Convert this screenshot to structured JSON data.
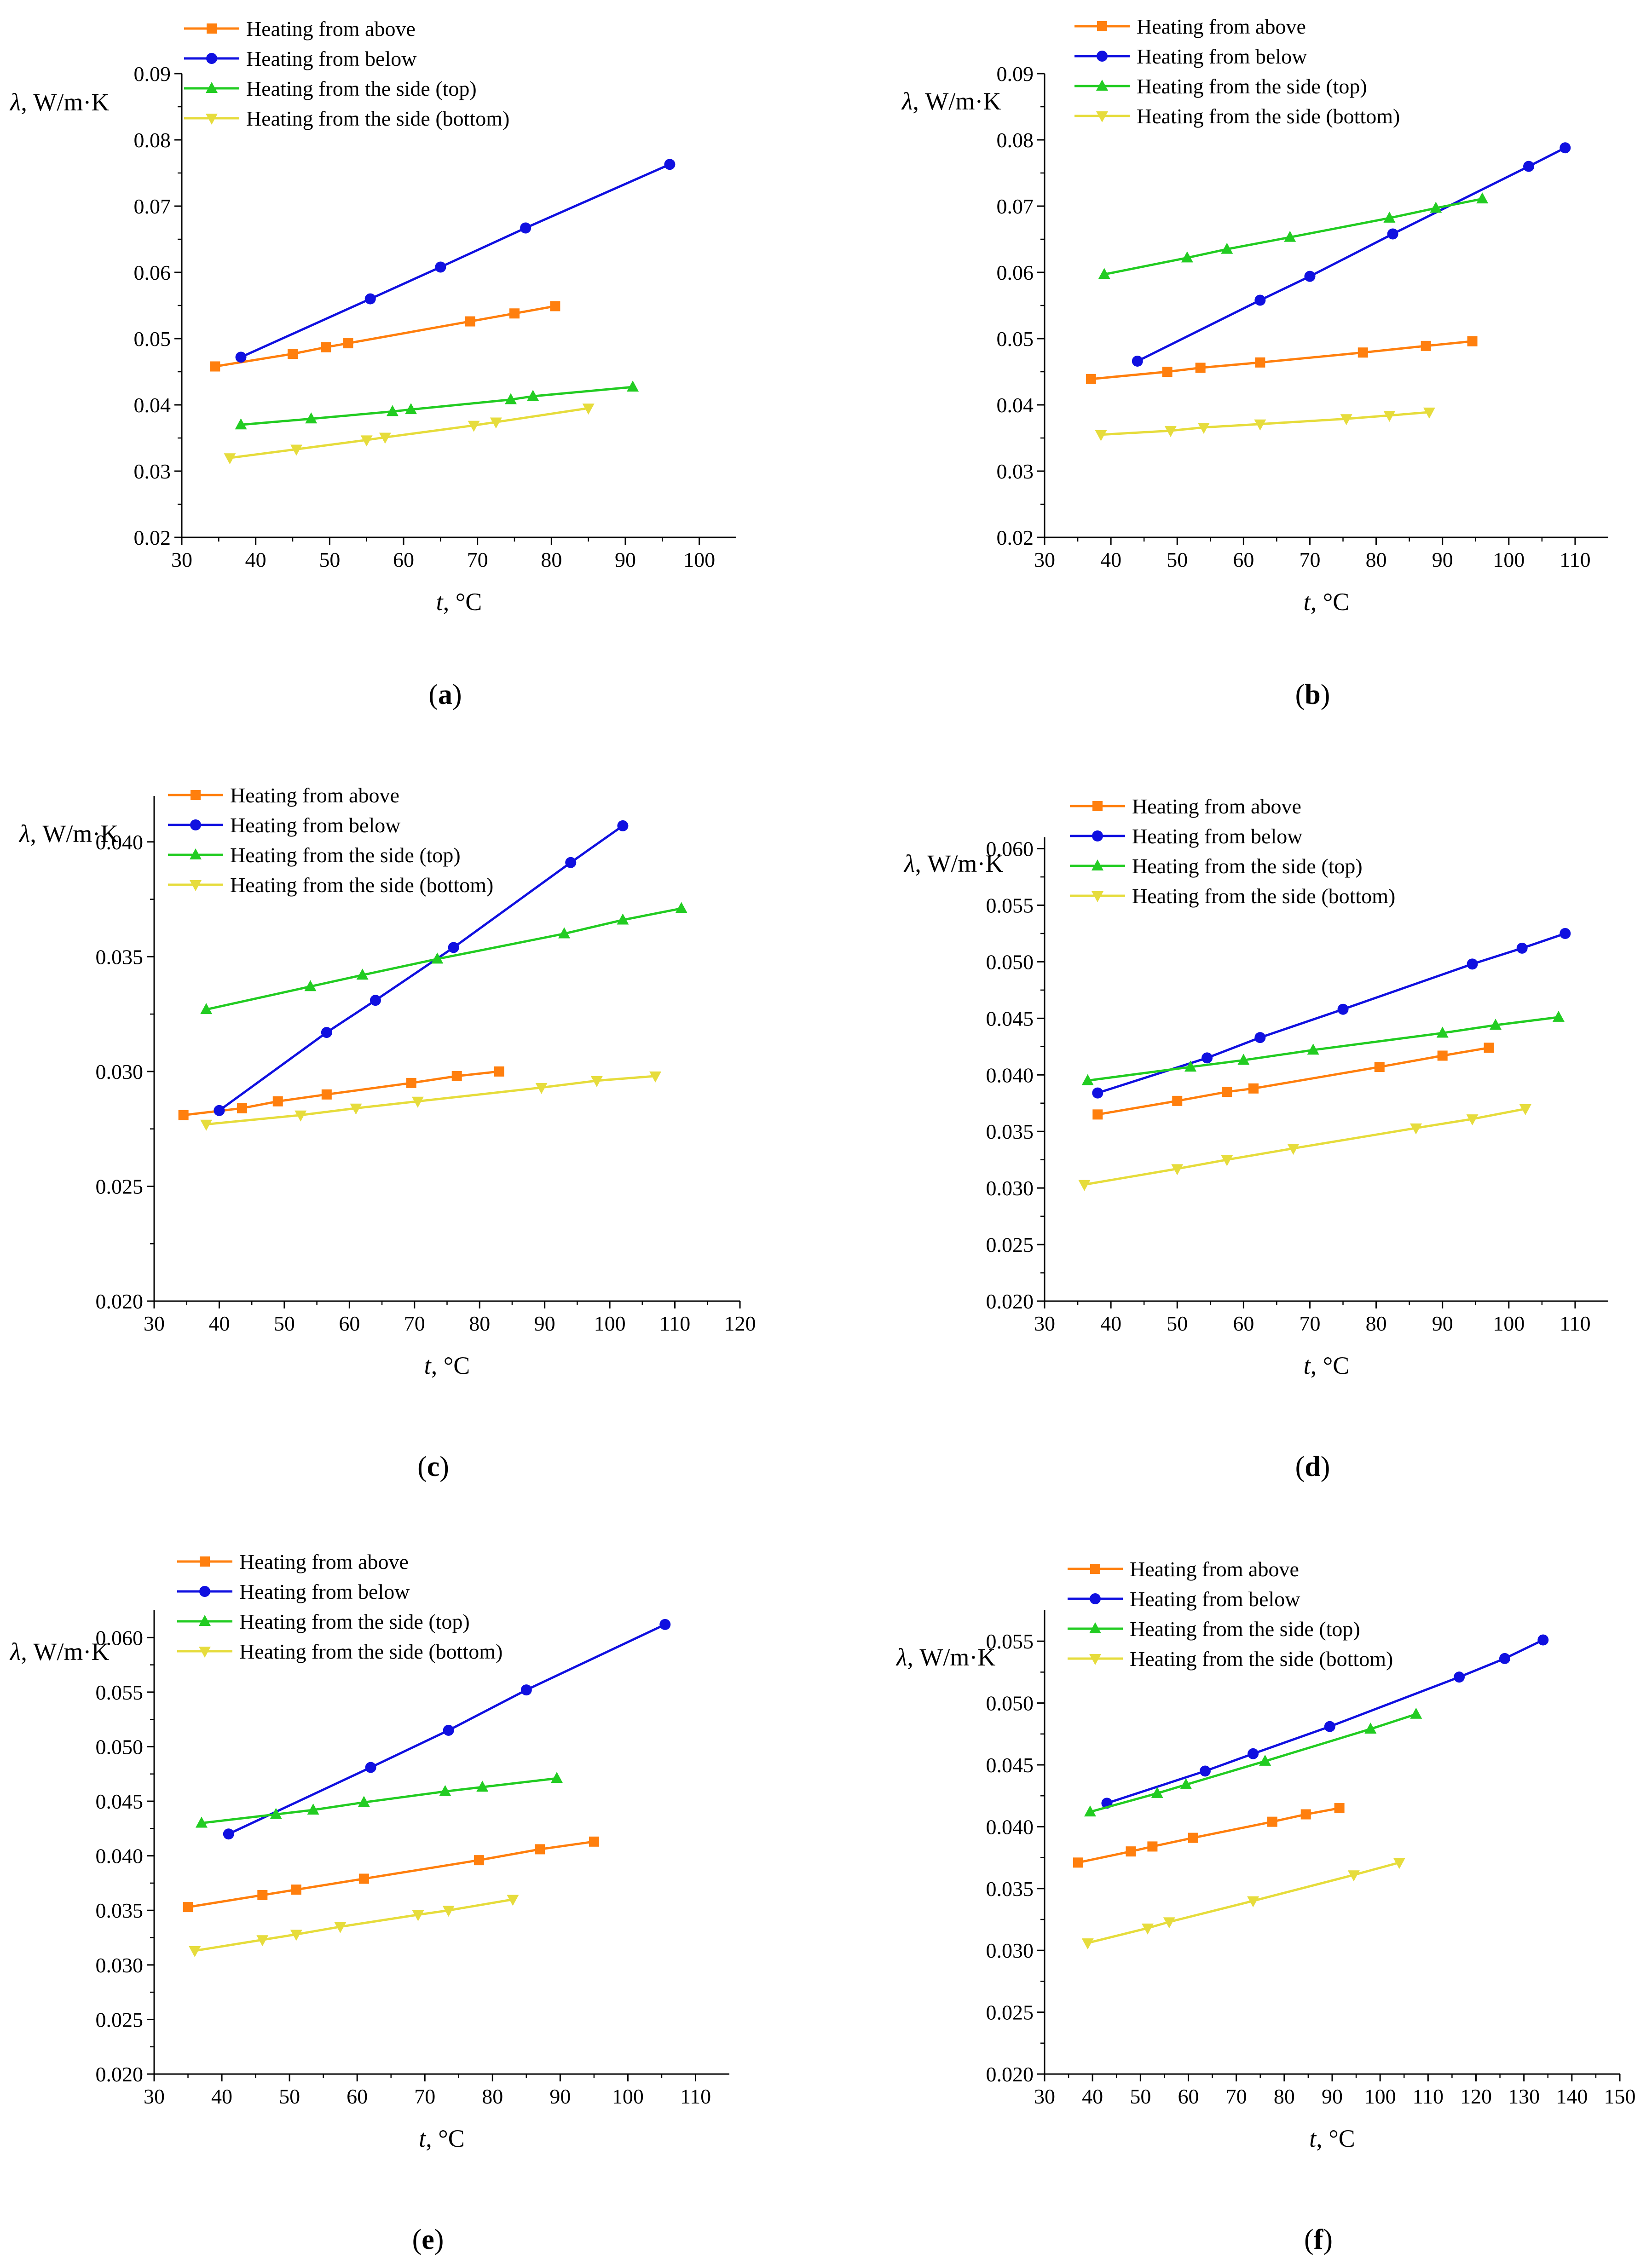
{
  "figure": {
    "series_colors": {
      "above": "#ff7f0e",
      "below": "#1010e0",
      "side_top": "#22cc22",
      "side_bottom": "#e6dc3c"
    },
    "marker_shapes": {
      "above": "square",
      "below": "circle",
      "side_top": "triangle-up",
      "side_bottom": "triangle-down"
    }
  },
  "chart_data": [
    {
      "id": "a",
      "type": "line",
      "caption_letter": "a",
      "xlabel_italic": "t",
      "xlabel_unit": ", °C",
      "ylabel_symbol": "λ",
      "ylabel_unit": ", W/m·K",
      "xlim": [
        30,
        105
      ],
      "ylim": [
        0.02,
        0.09
      ],
      "xticks": [
        "30",
        "40",
        "50",
        "60",
        "70",
        "80",
        "90",
        "100"
      ],
      "yticks": [
        "0.02",
        "0.03",
        "0.04",
        "0.05",
        "0.06",
        "0.07",
        "0.08",
        "0.09"
      ],
      "legend_position": "top-left",
      "series": [
        {
          "key": "above",
          "name": "Heating from above",
          "x": [
            34.5,
            45,
            49.5,
            52.5,
            69,
            75,
            80.5
          ],
          "y": [
            0.0458,
            0.0477,
            0.0487,
            0.0493,
            0.0526,
            0.0538,
            0.0549
          ]
        },
        {
          "key": "below",
          "name": "Heating from below",
          "x": [
            38,
            55.5,
            65,
            76.5,
            96
          ],
          "y": [
            0.0472,
            0.056,
            0.0608,
            0.0667,
            0.0763
          ]
        },
        {
          "key": "side_top",
          "name": "Heating from the side (top)",
          "x": [
            38,
            47.5,
            58.5,
            61,
            74.5,
            77.5,
            91
          ],
          "y": [
            0.037,
            0.0379,
            0.039,
            0.0393,
            0.0408,
            0.0413,
            0.0427
          ]
        },
        {
          "key": "side_bottom",
          "name": "Heating from the side (bottom)",
          "x": [
            36.5,
            45.5,
            55,
            57.5,
            69.5,
            72.5,
            85
          ],
          "y": [
            0.032,
            0.0333,
            0.0347,
            0.0351,
            0.0369,
            0.0374,
            0.0395
          ]
        }
      ]
    },
    {
      "id": "b",
      "type": "line",
      "caption_letter": "b",
      "xlabel_italic": "t",
      "xlabel_unit": ", °C",
      "ylabel_symbol": "λ",
      "ylabel_unit": ", W/m·K",
      "xlim": [
        30,
        115
      ],
      "ylim": [
        0.02,
        0.09
      ],
      "xticks": [
        "30",
        "40",
        "50",
        "60",
        "70",
        "80",
        "90",
        "100",
        "110"
      ],
      "yticks": [
        "0.02",
        "0.03",
        "0.04",
        "0.05",
        "0.06",
        "0.07",
        "0.08",
        "0.09"
      ],
      "legend_position": "top-left",
      "series": [
        {
          "key": "above",
          "name": "Heating from above",
          "x": [
            37,
            48.5,
            53.5,
            62.5,
            78,
            87.5,
            94.5
          ],
          "y": [
            0.0439,
            0.045,
            0.0456,
            0.0464,
            0.0479,
            0.0489,
            0.0496
          ]
        },
        {
          "key": "below",
          "name": "Heating from below",
          "x": [
            44,
            62.5,
            70,
            82.5,
            103,
            108.5
          ],
          "y": [
            0.0466,
            0.0558,
            0.0594,
            0.0658,
            0.076,
            0.0788
          ]
        },
        {
          "key": "side_top",
          "name": "Heating from the side (top)",
          "x": [
            39,
            51.5,
            57.5,
            67,
            82,
            89,
            96
          ],
          "y": [
            0.0597,
            0.0622,
            0.0635,
            0.0653,
            0.0682,
            0.0697,
            0.0711
          ]
        },
        {
          "key": "side_bottom",
          "name": "Heating from the side (bottom)",
          "x": [
            38.5,
            49,
            54,
            62.5,
            75.5,
            82,
            88
          ],
          "y": [
            0.0355,
            0.0361,
            0.0366,
            0.0371,
            0.0379,
            0.0384,
            0.0389
          ]
        }
      ]
    },
    {
      "id": "c",
      "type": "line",
      "caption_letter": "c",
      "xlabel_italic": "t",
      "xlabel_unit": ", °C",
      "ylabel_symbol": "λ",
      "ylabel_unit": ", W/m·K",
      "xlim": [
        30,
        120
      ],
      "ylim": [
        0.02,
        0.042
      ],
      "xticks": [
        "30",
        "40",
        "50",
        "60",
        "70",
        "80",
        "90",
        "100",
        "110",
        "120"
      ],
      "yticks": [
        "0.020",
        "0.025",
        "0.030",
        "0.035",
        "0.040"
      ],
      "legend_position": "top-left",
      "series": [
        {
          "key": "above",
          "name": "Heating from above",
          "x": [
            34.5,
            43.5,
            49,
            56.5,
            69.5,
            76.5,
            83
          ],
          "y": [
            0.0281,
            0.0284,
            0.0287,
            0.029,
            0.0295,
            0.0298,
            0.03
          ]
        },
        {
          "key": "below",
          "name": "Heating from below",
          "x": [
            40,
            56.5,
            64,
            76,
            94,
            102
          ],
          "y": [
            0.0283,
            0.0317,
            0.0331,
            0.0354,
            0.0391,
            0.0407
          ]
        },
        {
          "key": "side_top",
          "name": "Heating from the side (top)",
          "x": [
            38,
            54,
            62,
            73.5,
            93,
            102,
            111
          ],
          "y": [
            0.0327,
            0.0337,
            0.0342,
            0.0349,
            0.036,
            0.0366,
            0.0371
          ]
        },
        {
          "key": "side_bottom",
          "name": "Heating from the side (bottom)",
          "x": [
            38,
            52.5,
            61,
            70.5,
            89.5,
            98,
            107
          ],
          "y": [
            0.0277,
            0.0281,
            0.0284,
            0.0287,
            0.0293,
            0.0296,
            0.0298
          ]
        }
      ]
    },
    {
      "id": "d",
      "type": "line",
      "caption_letter": "d",
      "xlabel_italic": "t",
      "xlabel_unit": ", °C",
      "ylabel_symbol": "λ",
      "ylabel_unit": ", W/m·K",
      "xlim": [
        30,
        115
      ],
      "ylim": [
        0.02,
        0.061
      ],
      "xticks": [
        "30",
        "40",
        "50",
        "60",
        "70",
        "80",
        "90",
        "100",
        "110"
      ],
      "yticks": [
        "0.020",
        "0.025",
        "0.030",
        "0.035",
        "0.040",
        "0.045",
        "0.050",
        "0.055",
        "0.060"
      ],
      "legend_position": "top-left",
      "series": [
        {
          "key": "above",
          "name": "Heating from above",
          "x": [
            38,
            50,
            57.5,
            61.5,
            80.5,
            90,
            97
          ],
          "y": [
            0.0365,
            0.0377,
            0.0385,
            0.0388,
            0.0407,
            0.0417,
            0.0424
          ]
        },
        {
          "key": "below",
          "name": "Heating from below",
          "x": [
            38,
            54.5,
            62.5,
            75,
            94.5,
            102,
            108.5
          ],
          "y": [
            0.0384,
            0.0415,
            0.0433,
            0.0458,
            0.0498,
            0.0512,
            0.0525
          ]
        },
        {
          "key": "side_top",
          "name": "Heating from the side (top)",
          "x": [
            36.5,
            52,
            60,
            70.5,
            90,
            98,
            107.5
          ],
          "y": [
            0.0395,
            0.0407,
            0.0413,
            0.0422,
            0.0437,
            0.0444,
            0.0451
          ]
        },
        {
          "key": "side_bottom",
          "name": "Heating from the side (bottom)",
          "x": [
            36,
            50,
            57.5,
            67.5,
            86,
            94.5,
            102.5
          ],
          "y": [
            0.0303,
            0.0317,
            0.0325,
            0.0335,
            0.0353,
            0.0361,
            0.037
          ]
        }
      ]
    },
    {
      "id": "e",
      "type": "line",
      "caption_letter": "e",
      "xlabel_italic": "t",
      "xlabel_unit": ", °C",
      "ylabel_symbol": "λ",
      "ylabel_unit": ", W/m·K",
      "xlim": [
        30,
        115
      ],
      "ylim": [
        0.02,
        0.0625
      ],
      "xticks": [
        "30",
        "40",
        "50",
        "60",
        "70",
        "80",
        "90",
        "100",
        "110"
      ],
      "yticks": [
        "0.020",
        "0.025",
        "0.030",
        "0.035",
        "0.040",
        "0.045",
        "0.050",
        "0.055",
        "0.060"
      ],
      "legend_position": "top-left",
      "series": [
        {
          "key": "above",
          "name": "Heating from above",
          "x": [
            35,
            46,
            51,
            61,
            78,
            87,
            95
          ],
          "y": [
            0.0353,
            0.0364,
            0.0369,
            0.0379,
            0.0396,
            0.0406,
            0.0413
          ]
        },
        {
          "key": "below",
          "name": "Heating from below",
          "x": [
            41,
            62,
            73.5,
            85,
            105.5
          ],
          "y": [
            0.042,
            0.0481,
            0.0515,
            0.0552,
            0.0612
          ]
        },
        {
          "key": "side_top",
          "name": "Heating from the side (top)",
          "x": [
            37,
            48,
            53.5,
            61,
            73,
            78.5,
            89.5
          ],
          "y": [
            0.043,
            0.0438,
            0.0442,
            0.0449,
            0.0459,
            0.0463,
            0.0471
          ]
        },
        {
          "key": "side_bottom",
          "name": "Heating from the side (bottom)",
          "x": [
            36,
            46,
            51,
            57.5,
            69,
            73.5,
            83
          ],
          "y": [
            0.0313,
            0.0323,
            0.0328,
            0.0335,
            0.0346,
            0.035,
            0.036
          ]
        }
      ]
    },
    {
      "id": "f",
      "type": "line",
      "caption_letter": "f",
      "xlabel_italic": "t",
      "xlabel_unit": ", °C",
      "ylabel_symbol": "λ",
      "ylabel_unit": ", W/m·K",
      "xlim": [
        30,
        150
      ],
      "ylim": [
        0.02,
        0.0575
      ],
      "xticks": [
        "30",
        "40",
        "50",
        "60",
        "70",
        "80",
        "90",
        "100",
        "110",
        "120",
        "130",
        "140",
        "150"
      ],
      "yticks": [
        "0.020",
        "0.025",
        "0.030",
        "0.035",
        "0.040",
        "0.045",
        "0.050",
        "0.055"
      ],
      "legend_position": "top-left",
      "series": [
        {
          "key": "above",
          "name": "Heating from above",
          "x": [
            37,
            48,
            52.5,
            61,
            77.5,
            84.5,
            91.5
          ],
          "y": [
            0.0371,
            0.038,
            0.0384,
            0.0391,
            0.0404,
            0.041,
            0.0415
          ]
        },
        {
          "key": "below",
          "name": "Heating from below",
          "x": [
            43,
            63.5,
            73.5,
            89.5,
            116.5,
            126,
            134
          ],
          "y": [
            0.0419,
            0.0445,
            0.0459,
            0.0481,
            0.0521,
            0.0536,
            0.0551
          ]
        },
        {
          "key": "side_top",
          "name": "Heating from the side (top)",
          "x": [
            39.5,
            53.5,
            59.5,
            76,
            98,
            107.5
          ],
          "y": [
            0.0412,
            0.0427,
            0.0434,
            0.0453,
            0.0479,
            0.0491
          ]
        },
        {
          "key": "side_bottom",
          "name": "Heating from the side (bottom)",
          "x": [
            39,
            51.5,
            56,
            73.5,
            94.5,
            104
          ],
          "y": [
            0.0306,
            0.0318,
            0.0323,
            0.034,
            0.0361,
            0.0371
          ]
        }
      ]
    }
  ]
}
